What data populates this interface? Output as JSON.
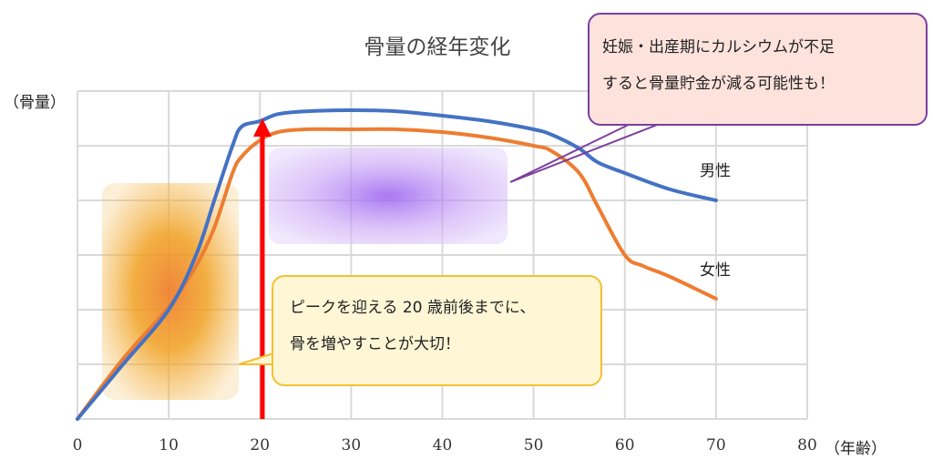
{
  "chart_data": {
    "type": "line",
    "title": "骨量の経年変化",
    "ylabel": "（骨量）",
    "xlabel": "（年齢）",
    "xlim": [
      0,
      80
    ],
    "ylim": [
      0,
      6
    ],
    "x_ticks": [
      0,
      10,
      20,
      30,
      40,
      50,
      60,
      70,
      80
    ],
    "grid": true,
    "series": [
      {
        "name": "男性",
        "color": "#4472c4",
        "x": [
          0,
          5,
          10,
          13,
          15,
          17,
          18,
          20,
          22,
          25,
          30,
          35,
          40,
          45,
          50,
          52,
          55,
          57,
          60,
          65,
          70
        ],
        "y": [
          0,
          1.0,
          2.0,
          3.0,
          4.0,
          5.0,
          5.35,
          5.45,
          5.58,
          5.63,
          5.65,
          5.63,
          5.55,
          5.45,
          5.3,
          5.2,
          4.95,
          4.7,
          4.5,
          4.2,
          4.0
        ]
      },
      {
        "name": "女性",
        "color": "#ed7d31",
        "x": [
          0,
          5,
          10,
          13,
          15,
          17,
          18,
          20,
          22,
          25,
          30,
          35,
          40,
          45,
          50,
          52,
          55,
          57,
          60,
          62,
          65,
          70
        ],
        "y": [
          0,
          1.1,
          2.05,
          2.8,
          3.5,
          4.5,
          4.8,
          5.1,
          5.25,
          5.3,
          5.3,
          5.3,
          5.25,
          5.15,
          5.0,
          4.9,
          4.5,
          3.9,
          3.0,
          2.8,
          2.6,
          2.2
        ]
      }
    ],
    "annotations": [
      {
        "text": "妊娠・出産期にカルシウムが不足",
        "text2": "すると骨量貯金が減る可能性も！"
      },
      {
        "text": "ピークを迎える 20 歳前後までに、",
        "text2": "骨を増やすことが大切！"
      }
    ],
    "arrow_x": 20,
    "colors": {
      "axis_text": "#333333",
      "grid": "#d9d9d9",
      "arrow": "#ff0000",
      "callout_purple_border": "#7b3f9e",
      "callout_purple_fill": "#fde3dc",
      "callout_yellow_border": "#f1c232",
      "callout_yellow_fill": "#fff6d6"
    }
  }
}
